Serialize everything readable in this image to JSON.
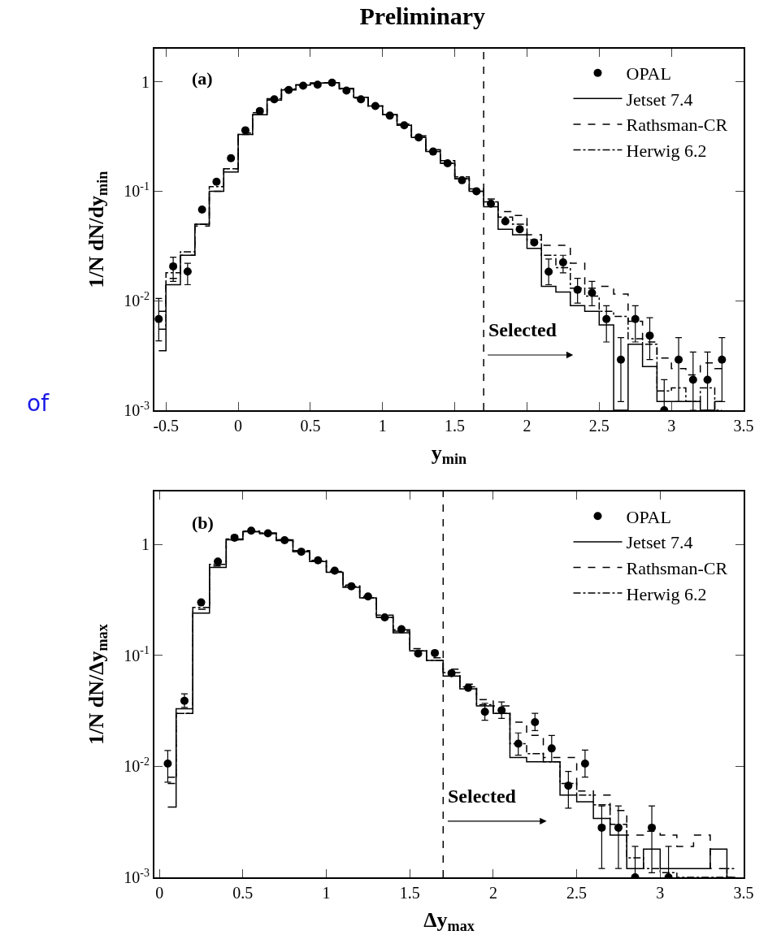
{
  "chart_data": [
    {
      "type": "step",
      "title": "Preliminary",
      "xlabel": "y$_{min}$",
      "ylabel": "1/N dN/dy$_{min}$",
      "annotations": [
        "(a)",
        "of",
        {
          "text": "Selected",
          "x": 1.72,
          "y": 0.0042
        }
      ],
      "x": [
        -0.55,
        -0.45,
        -0.35,
        -0.25,
        -0.15,
        -0.05,
        0.05,
        0.15,
        0.25,
        0.35,
        0.45,
        0.55,
        0.65,
        0.75,
        0.85,
        0.95,
        1.05,
        1.15,
        1.25,
        1.35,
        1.45,
        1.55,
        1.65,
        1.75,
        1.85,
        1.95,
        2.05,
        2.15,
        2.25,
        2.35,
        2.45,
        2.55,
        2.65,
        2.75,
        2.85,
        2.95,
        3.05,
        3.15,
        3.25,
        3.35
      ],
      "series": [
        {
          "name": "OPAL",
          "type": "scatter",
          "marker": "circle",
          "color": "#000000",
          "values": [
            0.0068,
            0.0206,
            0.0185,
            0.068,
            0.122,
            0.2,
            0.36,
            0.54,
            0.69,
            0.84,
            0.92,
            0.94,
            0.98,
            0.83,
            0.69,
            0.6,
            0.49,
            0.4,
            0.31,
            0.23,
            0.18,
            0.126,
            0.1,
            0.077,
            0.053,
            0.045,
            0.034,
            0.0184,
            0.0224,
            0.0126,
            0.0118,
            0.0068,
            0.0029,
            0.0068,
            0.0048,
            0.001,
            0.0029,
            0.0019,
            0.0019,
            0.0029
          ],
          "errors": [
            [
              0.0043,
              0.0105
            ],
            [
              0.015,
              0.025
            ],
            [
              0.014,
              0.022
            ],
            null,
            null,
            null,
            null,
            null,
            null,
            null,
            null,
            null,
            null,
            null,
            null,
            null,
            null,
            null,
            null,
            null,
            null,
            null,
            null,
            null,
            null,
            null,
            null,
            [
              0.014,
              0.024
            ],
            [
              0.018,
              0.026
            ],
            [
              0.0095,
              0.016
            ],
            [
              0.009,
              0.015
            ],
            [
              0.0042,
              0.009
            ],
            [
              0.0012,
              0.0046
            ],
            [
              0.0042,
              0.009
            ],
            [
              0.0029,
              0.007
            ],
            [
              0.001,
              0.0019
            ],
            [
              0.0012,
              0.0046
            ],
            [
              0.001,
              0.0034
            ],
            [
              0.001,
              0.0034
            ],
            [
              0.0012,
              0.0046
            ]
          ]
        },
        {
          "name": "Jetset 7.4",
          "line_style": "solid",
          "color": "#000000",
          "values": [
            0.0035,
            0.014,
            0.026,
            0.05,
            0.1,
            0.15,
            0.33,
            0.5,
            0.68,
            0.84,
            0.93,
            0.97,
            0.98,
            0.87,
            0.72,
            0.6,
            0.5,
            0.4,
            0.31,
            0.23,
            0.18,
            0.13,
            0.1,
            0.072,
            0.045,
            0.04,
            0.03,
            0.0135,
            0.012,
            0.009,
            0.008,
            0.006,
            0.001,
            0.004,
            0.0025,
            0.0012,
            0.0012,
            0.0012,
            0.001,
            0.0012
          ]
        },
        {
          "name": "Rathsman-CR",
          "line_style": "dashed",
          "color": "#000000",
          "values": [
            0.008,
            0.016,
            0.026,
            0.048,
            0.1,
            0.16,
            0.34,
            0.52,
            0.69,
            0.85,
            0.93,
            0.96,
            0.97,
            0.86,
            0.71,
            0.6,
            0.5,
            0.41,
            0.32,
            0.24,
            0.19,
            0.135,
            0.105,
            0.085,
            0.065,
            0.06,
            0.04,
            0.032,
            0.032,
            0.022,
            0.013,
            0.0135,
            0.0115,
            0.0065,
            0.0042,
            0.003,
            0.0024,
            0.0021,
            0.0027,
            0.0024
          ]
        },
        {
          "name": "Herwig 6.2",
          "line_style": "dotted",
          "color": "#000000",
          "values": [
            0.0055,
            0.018,
            0.028,
            0.05,
            0.11,
            0.16,
            0.33,
            0.5,
            0.7,
            0.86,
            0.94,
            0.97,
            0.98,
            0.87,
            0.72,
            0.6,
            0.5,
            0.41,
            0.31,
            0.23,
            0.18,
            0.13,
            0.1,
            0.08,
            0.058,
            0.05,
            0.036,
            0.026,
            0.02,
            0.013,
            0.011,
            0.008,
            0.0072,
            0.0045,
            0.004,
            0.0015,
            0.0016,
            0.0012,
            0.0016,
            0.001
          ]
        }
      ],
      "xlim": [
        -0.58,
        3.5
      ],
      "xticks": [
        -0.5,
        0,
        0.5,
        1,
        1.5,
        2,
        2.5,
        3,
        3.5
      ],
      "ylim": [
        0.001,
        2
      ],
      "yticks": [
        {
          "value": 0.001,
          "label": "10$^{-3}$"
        },
        {
          "value": 0.01,
          "label": "10$^{-2}$"
        },
        {
          "value": 0.1,
          "label": "10$^{-1}$"
        },
        1
      ],
      "log": "y",
      "grid": false,
      "legend": "top right",
      "ref_lines": [
        {
          "axis": "x",
          "value": 1.7,
          "line_style": "dashed"
        }
      ]
    },
    {
      "type": "step",
      "xlabel": "Δy$_{max}$",
      "ylabel": "1/N dN/Δy$_{max}$",
      "annotations": [
        "(b)",
        {
          "text": "Selected",
          "x": 1.72,
          "y": 0.0042
        }
      ],
      "x": [
        0.05,
        0.15,
        0.25,
        0.35,
        0.45,
        0.55,
        0.65,
        0.75,
        0.85,
        0.95,
        1.05,
        1.15,
        1.25,
        1.35,
        1.45,
        1.55,
        1.65,
        1.75,
        1.85,
        1.95,
        2.05,
        2.15,
        2.25,
        2.35,
        2.45,
        2.55,
        2.65,
        2.75,
        2.85,
        2.95,
        3.05,
        3.15,
        3.25,
        3.35,
        3.45
      ],
      "series": [
        {
          "name": "OPAL",
          "type": "scatter",
          "marker": "circle",
          "color": "#000000",
          "values": [
            0.0106,
            0.039,
            0.3,
            0.7,
            1.15,
            1.33,
            1.26,
            1.09,
            0.86,
            0.72,
            0.58,
            0.42,
            0.34,
            0.22,
            0.172,
            0.104,
            0.105,
            0.069,
            0.051,
            0.031,
            0.032,
            0.016,
            0.025,
            0.0145,
            0.0067,
            0.0106,
            0.0028,
            0.0028,
            0.001,
            0.0028,
            0.001,
            null,
            null,
            null,
            null
          ],
          "errors": [
            [
              0.0072,
              0.0139
            ],
            [
              0.034,
              0.045
            ],
            null,
            null,
            null,
            null,
            null,
            null,
            null,
            null,
            null,
            null,
            null,
            null,
            null,
            null,
            null,
            null,
            null,
            [
              0.026,
              0.037
            ],
            [
              0.027,
              0.038
            ],
            [
              0.0126,
              0.02
            ],
            [
              0.021,
              0.03
            ],
            [
              0.011,
              0.019
            ],
            [
              0.0042,
              0.009
            ],
            [
              0.008,
              0.014
            ],
            [
              0.0012,
              0.0044
            ],
            [
              0.0012,
              0.0044
            ],
            [
              0.001,
              0.0019
            ],
            [
              0.0011,
              0.0044
            ],
            [
              0.001,
              0.0019
            ],
            null,
            null,
            null,
            null
          ]
        },
        {
          "name": "Jetset 7.4",
          "line_style": "solid",
          "color": "#000000",
          "values": [
            0.0043,
            0.033,
            0.24,
            0.62,
            1.1,
            1.3,
            1.25,
            1.08,
            0.86,
            0.7,
            0.56,
            0.41,
            0.33,
            0.22,
            0.16,
            0.11,
            0.09,
            0.065,
            0.05,
            0.035,
            0.03,
            0.012,
            0.011,
            0.011,
            0.0055,
            0.0048,
            0.0034,
            0.0024,
            0.0012,
            0.0018,
            0.0012,
            0.0012,
            0.0012,
            0.0018,
            0.001
          ]
        },
        {
          "name": "Rathsman-CR",
          "line_style": "dashed",
          "color": "#000000",
          "values": [
            0.007,
            0.03,
            0.26,
            0.64,
            1.1,
            1.3,
            1.26,
            1.1,
            0.88,
            0.72,
            0.58,
            0.43,
            0.34,
            0.23,
            0.17,
            0.115,
            0.095,
            0.075,
            0.055,
            0.04,
            0.035,
            0.025,
            0.019,
            0.012,
            0.012,
            0.006,
            0.0055,
            0.004,
            0.0024,
            0.0026,
            0.0024,
            0.0019,
            0.0024,
            0.0012,
            0.001
          ]
        },
        {
          "name": "Herwig 6.2",
          "line_style": "dotted",
          "color": "#000000",
          "values": [
            0.008,
            0.03,
            0.27,
            0.66,
            1.12,
            1.32,
            1.27,
            1.1,
            0.87,
            0.71,
            0.57,
            0.42,
            0.33,
            0.22,
            0.165,
            0.11,
            0.09,
            0.07,
            0.052,
            0.036,
            0.03,
            0.016,
            0.013,
            0.011,
            0.007,
            0.0055,
            0.0045,
            0.003,
            0.0015,
            0.0012,
            0.0011,
            0.001,
            0.001,
            0.001,
            0.0012
          ]
        }
      ],
      "xlim": [
        -0.03,
        3.5
      ],
      "xticks": [
        0,
        0.5,
        1,
        1.5,
        2,
        2.5,
        3,
        3.5
      ],
      "ylim": [
        0.001,
        3
      ],
      "yticks": [
        {
          "value": 0.001,
          "label": "10$^{-3}$"
        },
        {
          "value": 0.01,
          "label": "10$^{-2}$"
        },
        {
          "value": 0.1,
          "label": "10$^{-1}$"
        },
        1
      ],
      "log": "y",
      "grid": false,
      "legend": "top right",
      "ref_lines": [
        {
          "axis": "x",
          "value": 1.7,
          "line_style": "dashed"
        }
      ]
    }
  ]
}
